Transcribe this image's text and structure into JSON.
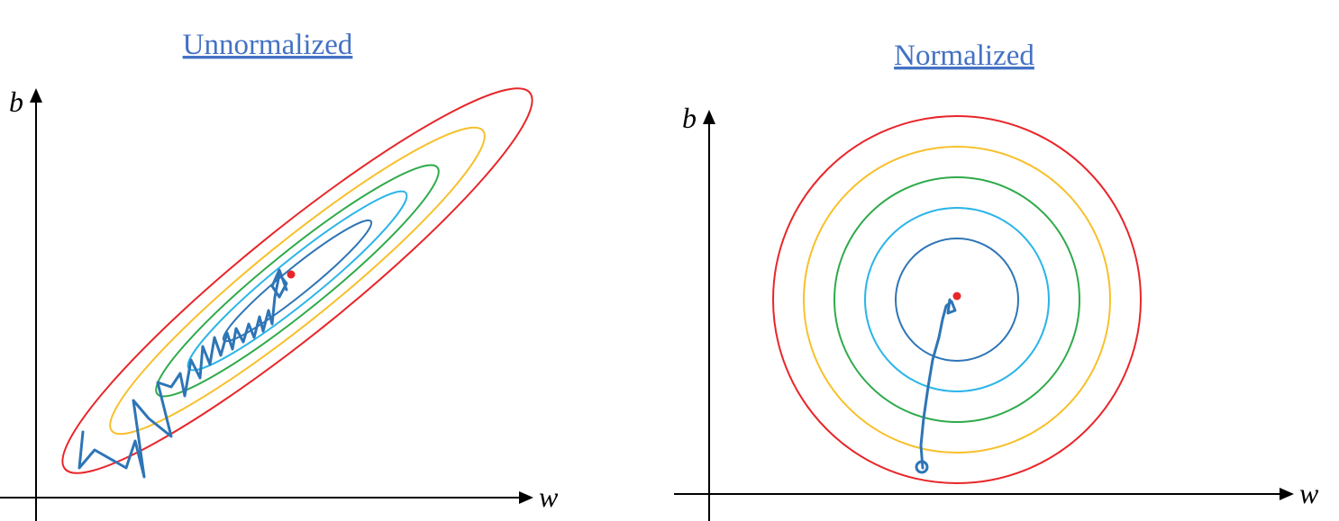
{
  "panels": [
    {
      "title": "Unnormalized",
      "y_axis": "b",
      "x_axis": "w"
    },
    {
      "title": "Normalized",
      "y_axis": "b",
      "x_axis": "w"
    }
  ]
}
